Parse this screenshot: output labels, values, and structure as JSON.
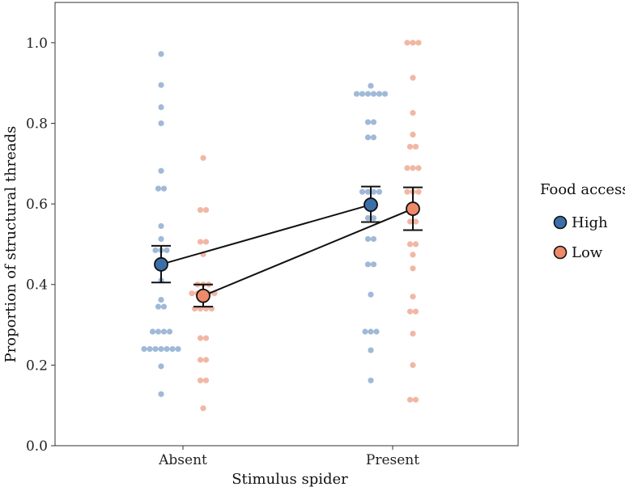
{
  "chart_data": {
    "type": "scatter",
    "title": "",
    "xlabel": "Stimulus spider",
    "ylabel": "Proportion of structural threads",
    "ylim": [
      0,
      1.1
    ],
    "yticks": [
      0.0,
      0.2,
      0.4,
      0.6,
      0.8,
      1.0
    ],
    "ytick_labels": [
      "0.0",
      "0.2",
      "0.4",
      "0.6",
      "0.8",
      "1.0"
    ],
    "categories": [
      "Absent",
      "Present"
    ],
    "grid": false,
    "legend": {
      "title": "Food access",
      "placement": "right",
      "entries": [
        "High",
        "Low"
      ]
    },
    "series": [
      {
        "name": "High",
        "point_color": "#9bb5d6",
        "mean_color": "#3c6fa8",
        "means": [
          0.45,
          0.598
        ],
        "ci_low": [
          0.405,
          0.555
        ],
        "ci_high": [
          0.496,
          0.643
        ],
        "raw": [
          [
            0.972,
            0.895,
            0.84,
            0.8,
            0.682,
            0.638,
            0.638,
            0.545,
            0.513,
            0.485,
            0.485,
            0.485,
            0.45,
            0.41,
            0.362,
            0.345,
            0.345,
            0.283,
            0.283,
            0.283,
            0.283,
            0.24,
            0.24,
            0.24,
            0.24,
            0.24,
            0.24,
            0.24,
            0.197,
            0.128
          ],
          [
            0.893,
            0.873,
            0.873,
            0.873,
            0.873,
            0.873,
            0.873,
            0.803,
            0.803,
            0.765,
            0.765,
            0.63,
            0.63,
            0.63,
            0.63,
            0.6,
            0.6,
            0.565,
            0.565,
            0.513,
            0.513,
            0.45,
            0.45,
            0.375,
            0.283,
            0.283,
            0.283,
            0.237,
            0.162
          ]
        ]
      },
      {
        "name": "Low",
        "point_color": "#f0b3a0",
        "mean_color": "#ee8a6a",
        "means": [
          0.372,
          0.588
        ],
        "ci_low": [
          0.345,
          0.535
        ],
        "ci_high": [
          0.4,
          0.641
        ],
        "raw": [
          [
            0.714,
            0.585,
            0.585,
            0.506,
            0.506,
            0.475,
            0.4,
            0.4,
            0.4,
            0.378,
            0.378,
            0.378,
            0.378,
            0.378,
            0.34,
            0.34,
            0.34,
            0.34,
            0.267,
            0.267,
            0.213,
            0.213,
            0.162,
            0.162,
            0.093
          ],
          [
            1.0,
            1.0,
            1.0,
            0.913,
            0.826,
            0.772,
            0.742,
            0.742,
            0.689,
            0.689,
            0.689,
            0.63,
            0.63,
            0.63,
            0.58,
            0.58,
            0.556,
            0.556,
            0.5,
            0.5,
            0.474,
            0.44,
            0.37,
            0.333,
            0.333,
            0.278,
            0.2,
            0.114,
            0.114
          ]
        ]
      }
    ]
  }
}
